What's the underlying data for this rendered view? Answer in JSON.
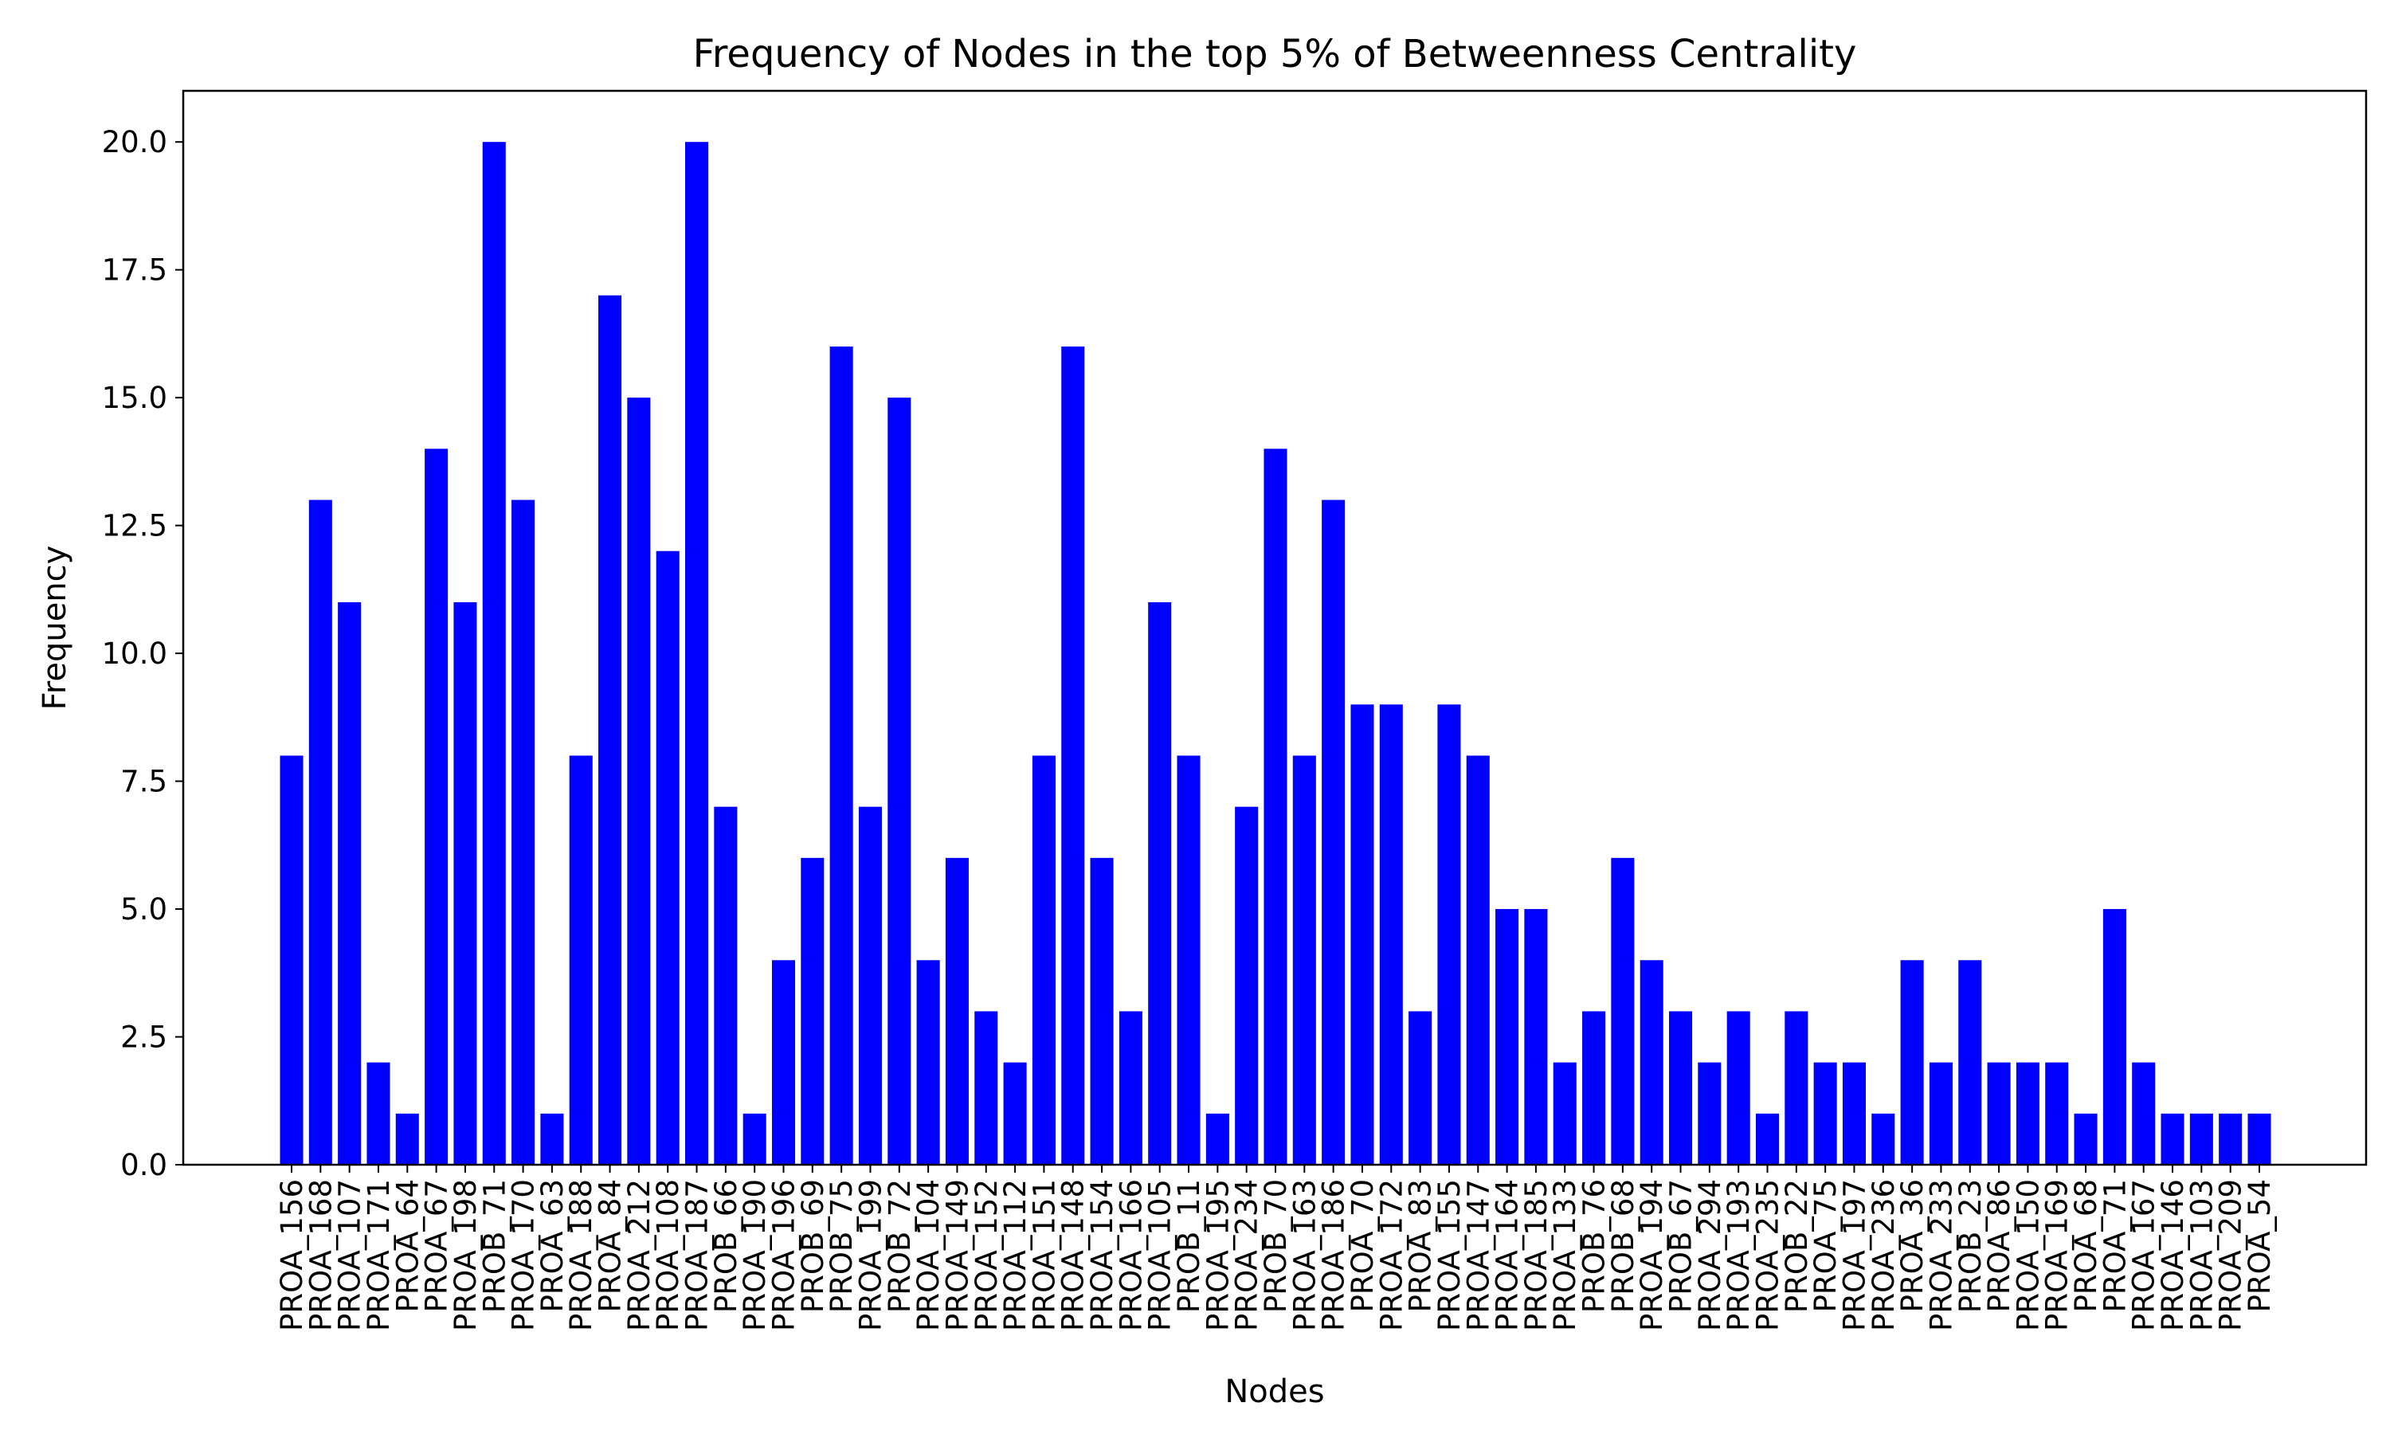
{
  "chart_data": {
    "type": "bar",
    "title": "Frequency of Nodes in the top 5% of Betweenness Centrality",
    "xlabel": "Nodes",
    "ylabel": "Frequency",
    "ylim": [
      0,
      21
    ],
    "yticks": [
      0.0,
      2.5,
      5.0,
      7.5,
      10.0,
      12.5,
      15.0,
      17.5,
      20.0
    ],
    "ytick_labels": [
      "0.0",
      "2.5",
      "5.0",
      "7.5",
      "10.0",
      "12.5",
      "15.0",
      "17.5",
      "20.0"
    ],
    "bar_color": "#0000ff",
    "grid": false,
    "categories": [
      "PROA_156",
      "PROA_168",
      "PROA_107",
      "PROA_171",
      "PROA_64",
      "PROA_67",
      "PROA_198",
      "PROB_71",
      "PROA_170",
      "PROA_63",
      "PROA_188",
      "PROA_84",
      "PROA_212",
      "PROA_108",
      "PROA_187",
      "PROB_66",
      "PROA_190",
      "PROA_196",
      "PROB_69",
      "PROB_75",
      "PROA_199",
      "PROB_72",
      "PROA_104",
      "PROA_149",
      "PROA_152",
      "PROA_112",
      "PROA_151",
      "PROA_148",
      "PROA_154",
      "PROA_166",
      "PROA_105",
      "PROB_11",
      "PROA_195",
      "PROA_234",
      "PROB_70",
      "PROA_163",
      "PROA_186",
      "PROA_70",
      "PROA_172",
      "PROA_83",
      "PROA_155",
      "PROA_147",
      "PROA_164",
      "PROA_185",
      "PROA_133",
      "PROB_76",
      "PROB_68",
      "PROA_194",
      "PROB_67",
      "PROA_294",
      "PROA_193",
      "PROA_235",
      "PROB_22",
      "PROA_75",
      "PROA_197",
      "PROA_236",
      "PROA_36",
      "PROA_233",
      "PROB_23",
      "PROA_86",
      "PROA_150",
      "PROA_169",
      "PROA_68",
      "PROA_71",
      "PROA_167",
      "PROA_146",
      "PROA_103",
      "PROA_209",
      "PROA_54"
    ],
    "values": [
      8,
      13,
      11,
      2,
      1,
      14,
      11,
      20,
      13,
      1,
      8,
      17,
      15,
      12,
      20,
      7,
      1,
      4,
      6,
      16,
      7,
      15,
      4,
      6,
      3,
      2,
      8,
      16,
      6,
      3,
      11,
      8,
      1,
      7,
      14,
      8,
      13,
      9,
      9,
      3,
      9,
      8,
      5,
      5,
      2,
      3,
      6,
      4,
      3,
      2,
      3,
      1,
      3,
      2,
      2,
      1,
      4,
      2,
      4,
      2,
      2,
      2,
      1,
      5,
      2,
      1,
      1,
      1,
      1
    ]
  }
}
